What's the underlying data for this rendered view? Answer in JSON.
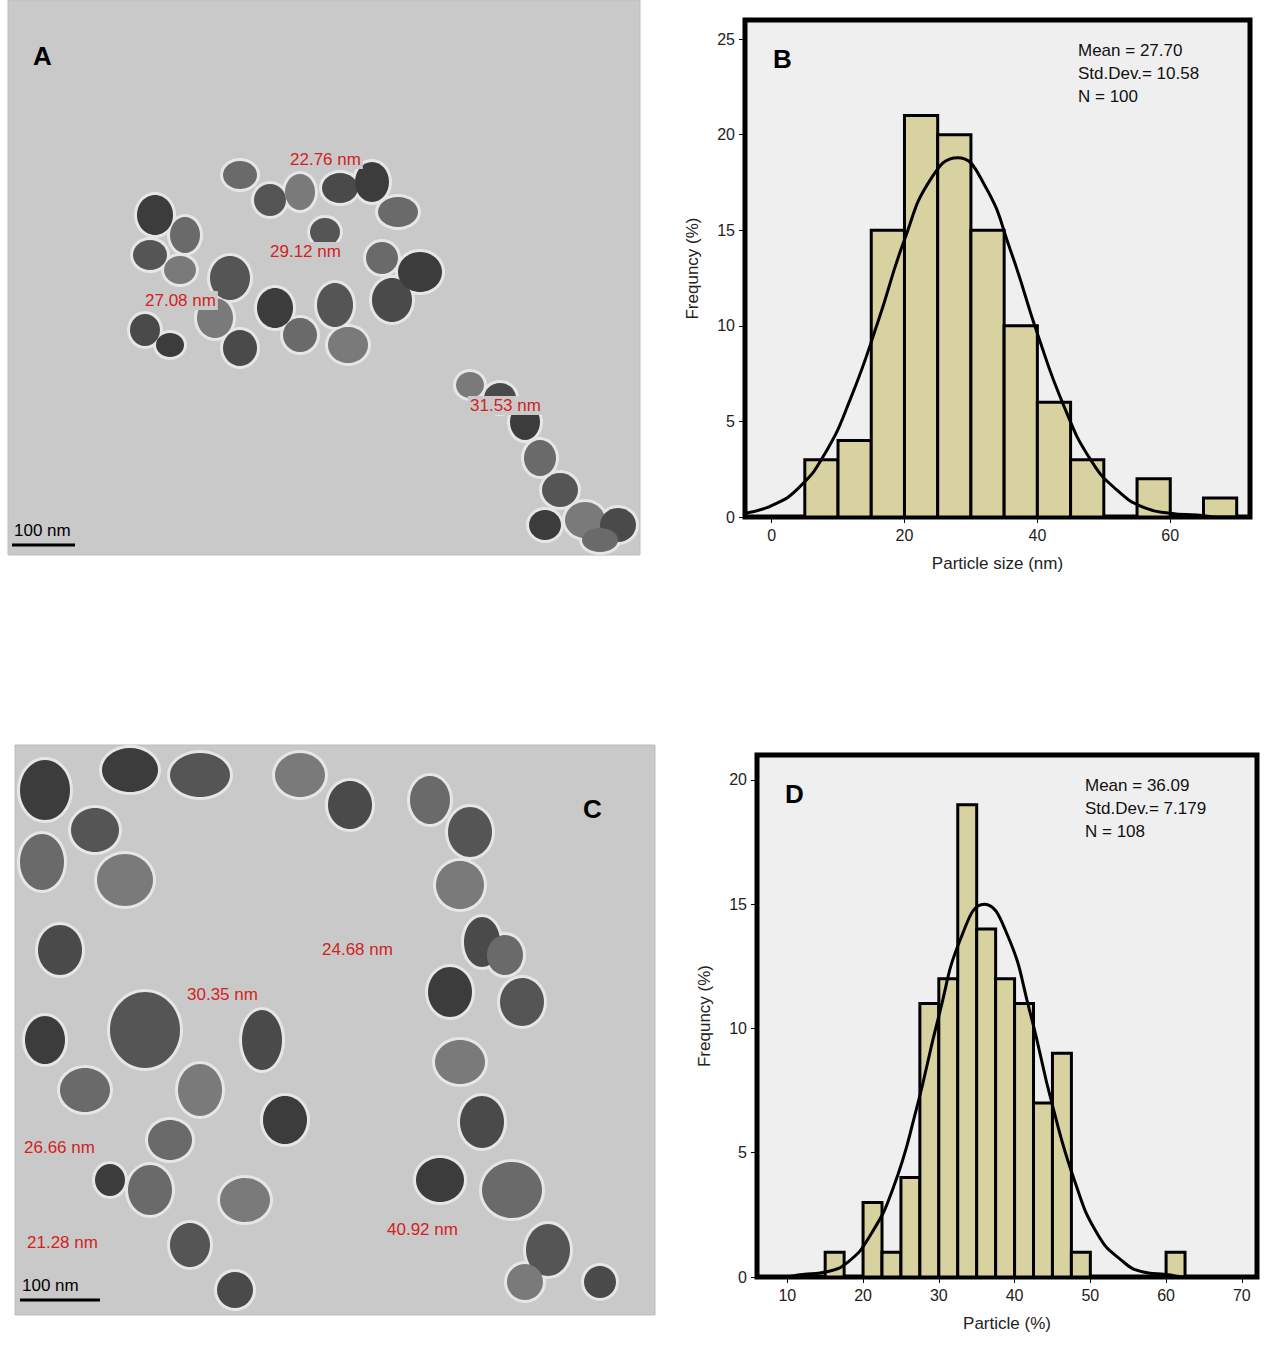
{
  "chart_data": [
    {
      "type": "histogram",
      "title": "B",
      "bins": [
        5,
        10,
        15,
        20,
        25,
        30,
        35,
        40,
        45,
        50,
        55,
        60,
        65,
        70
      ],
      "values": [
        3,
        4,
        15,
        21,
        20,
        15,
        10,
        6,
        3,
        0,
        2,
        0,
        1
      ],
      "color": "#d8d2a0",
      "curve": {
        "x": [
          -4,
          0,
          4,
          8,
          12,
          16,
          20,
          24,
          28,
          32,
          36,
          40,
          44,
          48,
          52,
          56,
          60,
          64,
          68,
          72
        ],
        "y": [
          0.2,
          0.6,
          1.5,
          3.3,
          6.3,
          10.2,
          14.5,
          17.7,
          18.8,
          17.4,
          13.9,
          9.6,
          5.8,
          3.0,
          1.4,
          0.5,
          0.2,
          0.1,
          0.0,
          0.0
        ],
        "color": "#000000"
      },
      "annotations": [
        "Mean = 27.70",
        "Std.Dev.= 10.58",
        "N = 100"
      ],
      "x_label": "Particle size (nm)",
      "y_label": "Frequncy (%)",
      "xlim": [
        -4,
        72
      ],
      "ylim": [
        0,
        26
      ],
      "xticks": [
        0,
        20,
        40,
        60
      ],
      "yticks": [
        0,
        5,
        10,
        15,
        20,
        25
      ],
      "grid": false
    },
    {
      "type": "histogram",
      "title": "D",
      "bins": [
        15,
        17.5,
        20,
        22.5,
        25,
        27.5,
        30,
        32.5,
        35,
        37.5,
        40,
        42.5,
        45,
        47.5,
        50,
        52.5,
        55,
        57.5,
        60,
        62.5
      ],
      "values": [
        1,
        0,
        3,
        1,
        4,
        11,
        12,
        19,
        14,
        12,
        11,
        7,
        9,
        1,
        0,
        0,
        0,
        0,
        1
      ],
      "color": "#d8d2a0",
      "curve": {
        "x": [
          6,
          9,
          12,
          15,
          18,
          21,
          24,
          27,
          30,
          33,
          36,
          39,
          42,
          45,
          48,
          51,
          54,
          57,
          60,
          63,
          66,
          69,
          72
        ],
        "y": [
          0.0,
          0.0,
          0.1,
          0.2,
          0.6,
          1.7,
          3.6,
          6.7,
          10.5,
          13.7,
          15.0,
          13.8,
          10.7,
          6.9,
          3.8,
          1.7,
          0.7,
          0.2,
          0.1,
          0.0,
          0.0,
          0.0,
          0.0
        ],
        "color": "#000000"
      },
      "annotations": [
        "Mean = 36.09",
        "Std.Dev.= 7.179",
        "N = 108"
      ],
      "x_label": "Particle (%)",
      "y_label": "Frequncy (%)",
      "xlim": [
        6,
        72
      ],
      "ylim": [
        0,
        21
      ],
      "xticks": [
        10,
        20,
        30,
        40,
        50,
        60,
        70
      ],
      "yticks": [
        0,
        5,
        10,
        15,
        20
      ],
      "grid": false
    }
  ],
  "images": [
    {
      "label": "A",
      "scale_bar": "100 nm",
      "annotations": [
        "22.76 nm",
        "29.12 nm",
        "27.08 nm",
        "31.53 nm"
      ]
    },
    {
      "label": "C",
      "scale_bar": "100 nm",
      "annotations": [
        "24.68 nm",
        "30.35 nm",
        "26.66 nm",
        "21.28 nm",
        "40.92 nm"
      ]
    }
  ]
}
